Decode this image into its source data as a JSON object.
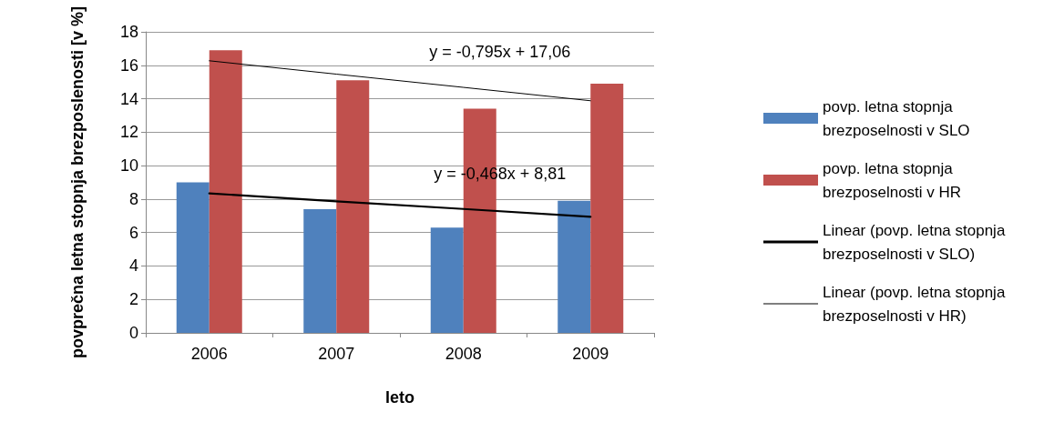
{
  "chart_data": {
    "type": "bar",
    "categories": [
      "2006",
      "2007",
      "2008",
      "2009"
    ],
    "xlabel": "leto",
    "ylabel": "povprečna letna stopnja brezposlenosti [v %]",
    "ylim": [
      0,
      18
    ],
    "yticks": [
      0,
      2,
      4,
      6,
      8,
      10,
      12,
      14,
      16,
      18
    ],
    "grid": "y",
    "legend": "right",
    "marker": "none",
    "series": [
      {
        "name": "povp. letna stopnja brezposelnosti v SLO",
        "color": "#4f81bd",
        "values": [
          9.0,
          7.4,
          6.3,
          7.9
        ]
      },
      {
        "name": "povp. letna stopnja brezposelnosti v HR",
        "color": "#c0504d",
        "values": [
          16.9,
          15.1,
          13.4,
          14.9
        ]
      },
      {
        "type": "line",
        "name": "Linear (povp. letna stopnja brezposelnosti v SLO)",
        "color": "#000000",
        "line_style": "solid",
        "values": [
          8.34,
          7.87,
          7.41,
          6.94
        ]
      },
      {
        "type": "line",
        "name": "Linear (povp. letna stopnja brezposelnosti v HR)",
        "color": "#000000",
        "line_style": "solid",
        "values": [
          16.27,
          15.47,
          14.68,
          13.88
        ]
      }
    ],
    "annotations": [
      {
        "text": "y = -0,468x + 8,81",
        "x": "2008",
        "y": 7.41
      },
      {
        "text": "y = -0,795x + 17,06",
        "x": "2008",
        "y": 14.68
      }
    ]
  }
}
